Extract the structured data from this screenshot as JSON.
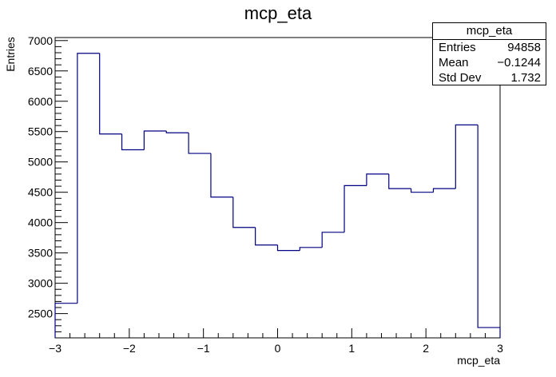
{
  "chart_data": {
    "type": "histogram",
    "title": "mcp_eta",
    "xlabel": "mcp_eta",
    "ylabel": "Entries",
    "xlim": [
      -3,
      3
    ],
    "ylim": [
      2100,
      7050
    ],
    "line_color": "#000080",
    "bin_edges": [
      -3.0,
      -2.7,
      -2.4,
      -2.1,
      -1.8,
      -1.5,
      -1.2,
      -0.9,
      -0.6,
      -0.3,
      0.0,
      0.3,
      0.6,
      0.9,
      1.2,
      1.5,
      1.8,
      2.1,
      2.4,
      2.7,
      3.0
    ],
    "values": [
      2670,
      6790,
      5460,
      5200,
      5510,
      5480,
      5140,
      4420,
      3920,
      3630,
      3540,
      3590,
      3840,
      4610,
      4800,
      4560,
      4500,
      4560,
      5610,
      2270
    ],
    "x_ticks": [
      "−3",
      "−2",
      "−1",
      "0",
      "1",
      "2",
      "3"
    ],
    "x_tick_values": [
      -3,
      -2,
      -1,
      0,
      1,
      2,
      3
    ],
    "y_ticks": [
      "2500",
      "3000",
      "3500",
      "4000",
      "4500",
      "5000",
      "5500",
      "6000",
      "6500",
      "7000"
    ],
    "y_tick_values": [
      2500,
      3000,
      3500,
      4000,
      4500,
      5000,
      5500,
      6000,
      6500,
      7000
    ],
    "grid": false,
    "legend": "none"
  },
  "stats": {
    "title": "mcp_eta",
    "rows": [
      {
        "label": "Entries",
        "value": "94858"
      },
      {
        "label": "Mean",
        "value": "−0.1244"
      },
      {
        "label": "Std Dev",
        "value": "1.732"
      }
    ]
  }
}
